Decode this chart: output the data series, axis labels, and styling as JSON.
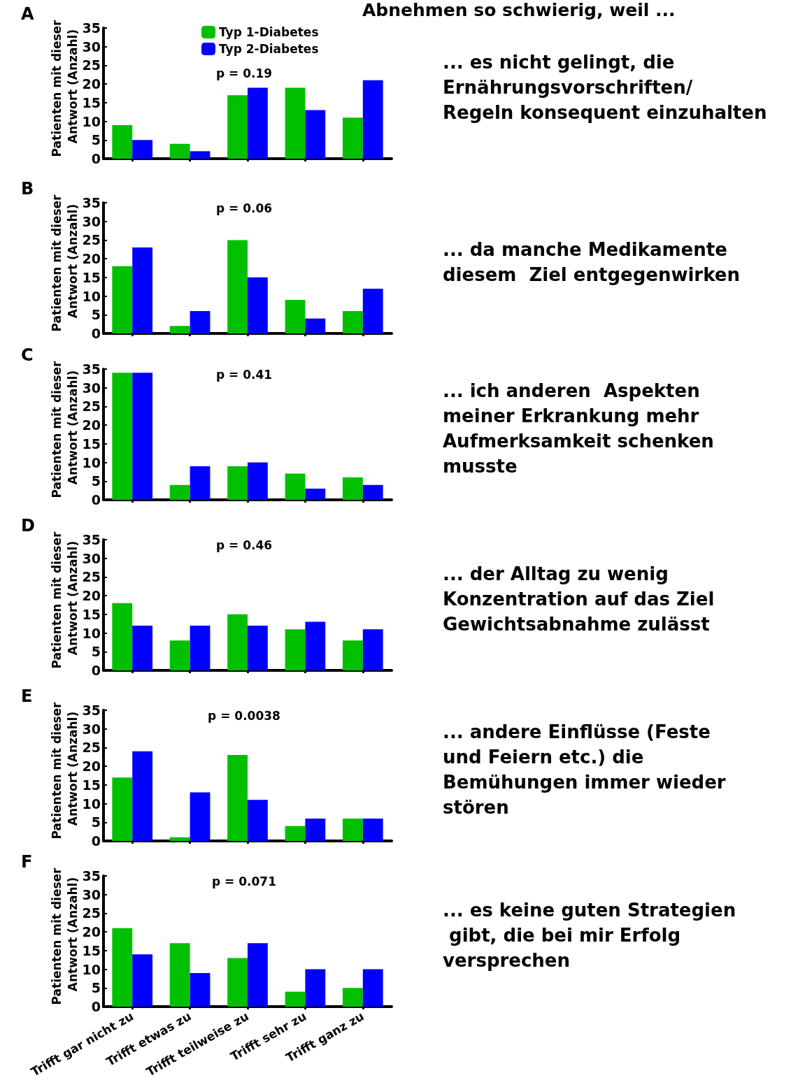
{
  "chart_data": [
    {
      "type": "bar",
      "title": "A",
      "subtitle": "Abnehmen so schwierig, weil ...",
      "ylabel": "Patienten mit dieser Antwort (Anzahl)",
      "categories": [
        null,
        null,
        null,
        null,
        null
      ],
      "series": [
        {
          "name": "Typ 1-Diabetes",
          "color": "#00c000",
          "values": [
            9,
            4,
            17,
            19,
            11
          ]
        },
        {
          "name": "Typ 2-Diabetes",
          "color": "#0000ff",
          "values": [
            5,
            2,
            19,
            13,
            21
          ]
        }
      ],
      "ylim": [
        0,
        35
      ],
      "yticks": [
        0,
        5,
        10,
        15,
        20,
        25,
        30,
        35
      ],
      "grid": false,
      "legend": "top",
      "tick_labels": "y",
      "annotations": [
        "p = 0.19",
        "... es nicht gelingt, die Ernährungsvorschriften/ Regeln konsequent einzuhalten"
      ]
    },
    {
      "type": "bar",
      "title": "B",
      "ylabel": "Patienten mit dieser Antwort (Anzahl)",
      "categories": [
        null,
        null,
        null,
        null,
        null
      ],
      "series": [
        {
          "color": "#00c000",
          "values": [
            18,
            2,
            25,
            9,
            6
          ]
        },
        {
          "color": "#0000ff",
          "values": [
            23,
            6,
            15,
            4,
            12
          ]
        }
      ],
      "ylim": [
        0,
        35
      ],
      "yticks": [
        0,
        5,
        10,
        15,
        20,
        25,
        30,
        35
      ],
      "grid": false,
      "tick_labels": "y",
      "annotations": [
        "p = 0.06",
        "... da manche Medikamente diesem  Ziel entgegenwirken"
      ]
    },
    {
      "type": "bar",
      "title": "C",
      "ylabel": "Patienten mit dieser Antwort (Anzahl)",
      "categories": [
        null,
        null,
        null,
        null,
        null
      ],
      "series": [
        {
          "color": "#00c000",
          "values": [
            34,
            4,
            9,
            7,
            6
          ]
        },
        {
          "color": "#0000ff",
          "values": [
            34,
            9,
            10,
            3,
            4
          ]
        }
      ],
      "ylim": [
        0,
        35
      ],
      "yticks": [
        0,
        5,
        10,
        15,
        20,
        25,
        30,
        35
      ],
      "grid": false,
      "tick_labels": "y",
      "annotations": [
        "p = 0.41",
        "... ich anderen  Aspekten meiner Erkrankung mehr Aufmerksamkeit schenken musste"
      ]
    },
    {
      "type": "bar",
      "title": "D",
      "ylabel": "Patienten mit dieser Antwort (Anzahl)",
      "categories": [
        null,
        null,
        null,
        null,
        null
      ],
      "series": [
        {
          "color": "#00c000",
          "values": [
            18,
            8,
            15,
            11,
            8
          ]
        },
        {
          "color": "#0000ff",
          "values": [
            12,
            12,
            12,
            13,
            11
          ]
        }
      ],
      "ylim": [
        0,
        35
      ],
      "yticks": [
        0,
        5,
        10,
        15,
        20,
        25,
        30,
        35
      ],
      "grid": false,
      "tick_labels": "y",
      "annotations": [
        "p = 0.46",
        "... der Alltag zu wenig Konzentration auf das Ziel Gewichtsabnahme zulässt"
      ]
    },
    {
      "type": "bar",
      "title": "E",
      "ylabel": "Patienten mit dieser Antwort (Anzahl)",
      "categories": [
        null,
        null,
        null,
        null,
        null
      ],
      "series": [
        {
          "color": "#00c000",
          "values": [
            17,
            1,
            23,
            4,
            6
          ]
        },
        {
          "color": "#0000ff",
          "values": [
            24,
            13,
            11,
            6,
            6
          ]
        }
      ],
      "ylim": [
        0,
        35
      ],
      "yticks": [
        0,
        5,
        10,
        15,
        20,
        25,
        30,
        35
      ],
      "grid": false,
      "tick_labels": "y",
      "annotations": [
        "p = 0.0038",
        "... andere Einflüsse (Feste und Feiern etc.) die Bemühungen immer wieder stören"
      ]
    },
    {
      "type": "bar",
      "title": "F",
      "ylabel": "Patienten mit dieser Antwort (Anzahl)",
      "categories": [
        "Trifft gar nicht zu",
        "Trifft etwas zu",
        "Trifft teilweise zu",
        "Trifft sehr zu",
        "Trifft ganz zu"
      ],
      "series": [
        {
          "color": "#00c000",
          "values": [
            21,
            17,
            13,
            4,
            5
          ]
        },
        {
          "color": "#0000ff",
          "values": [
            14,
            9,
            17,
            10,
            10
          ]
        }
      ],
      "ylim": [
        0,
        35
      ],
      "yticks": [
        0,
        5,
        10,
        15,
        20,
        25,
        30,
        35
      ],
      "grid": false,
      "annotations": [
        "p = 0.071",
        "... es keine guten Strategien gibt, die bei mir Erfolg versprechen"
      ]
    }
  ]
}
